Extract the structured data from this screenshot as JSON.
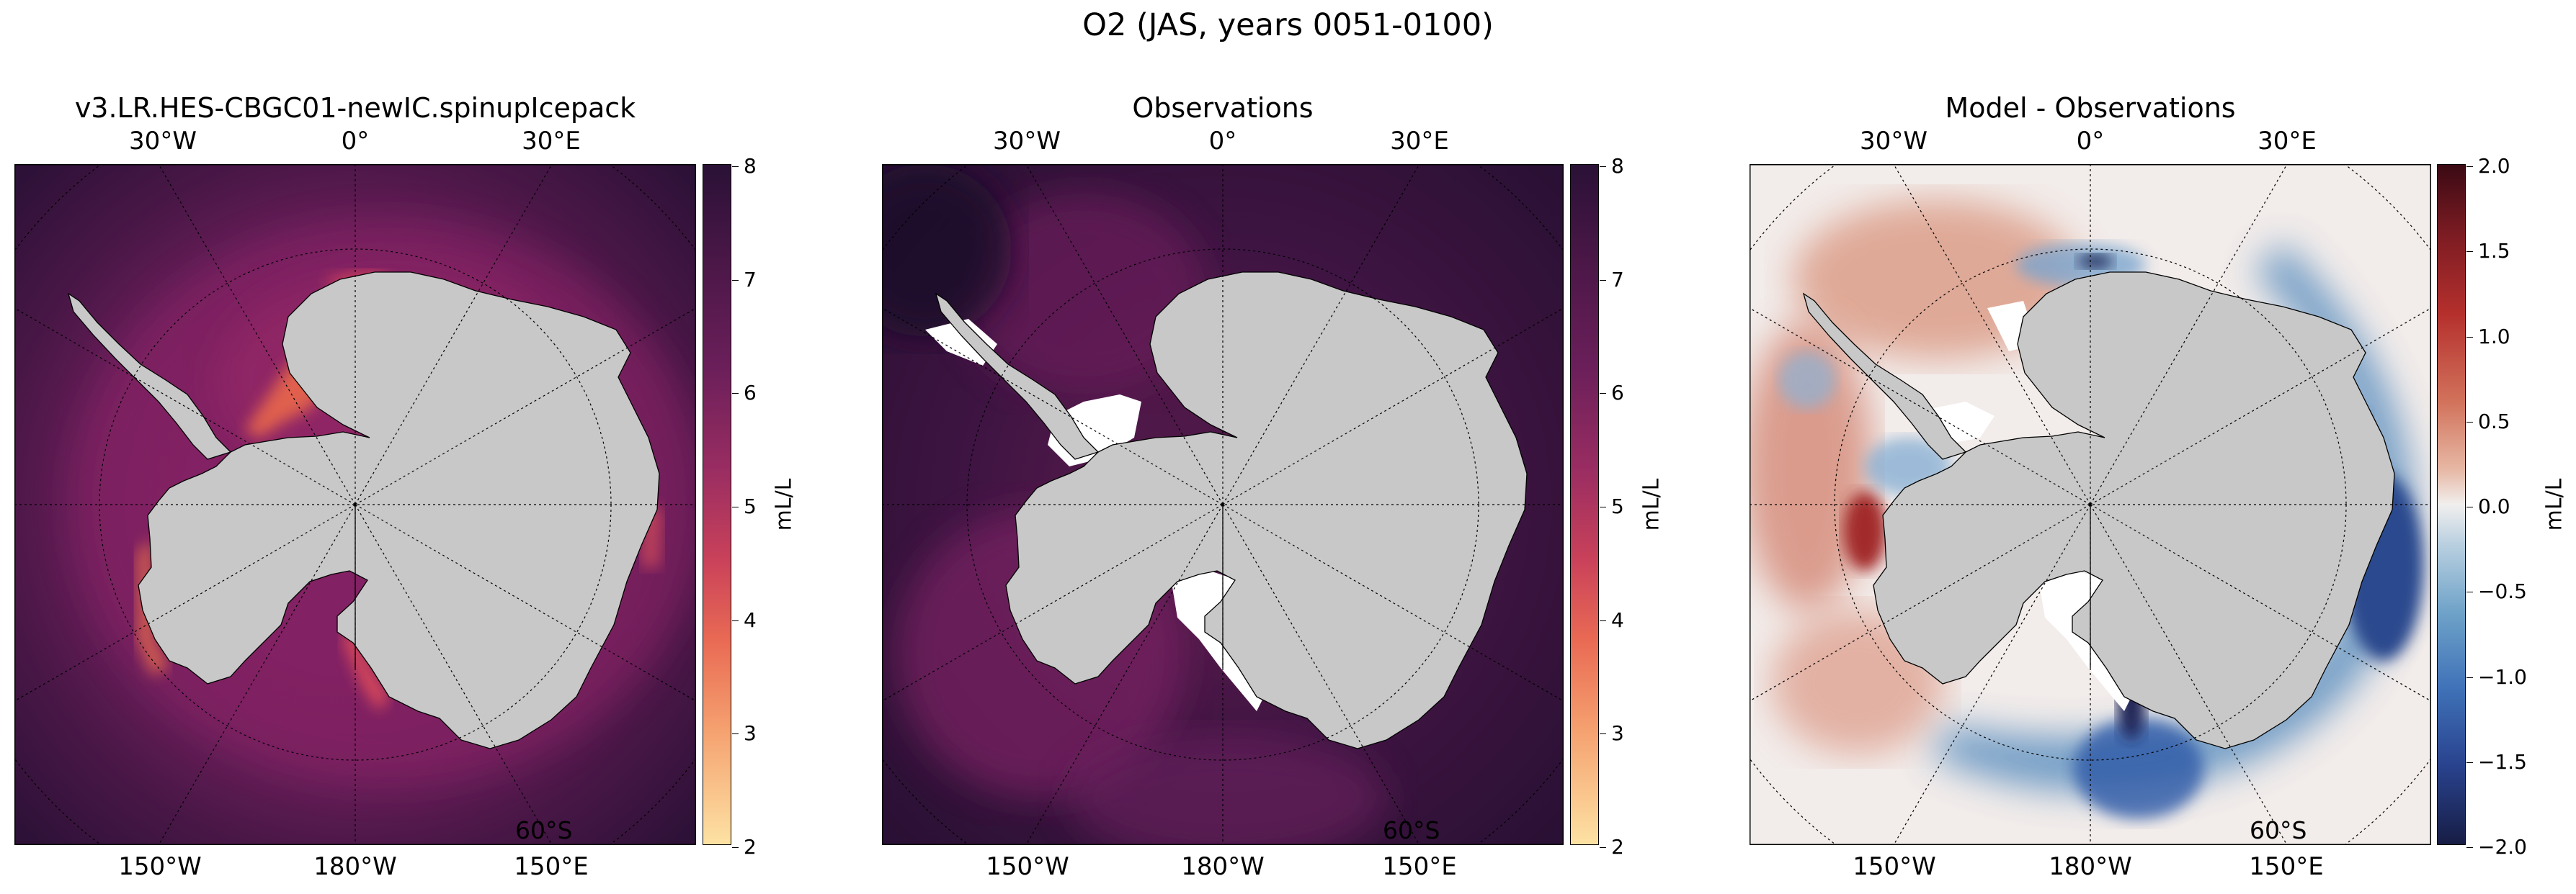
{
  "figure_title": "O2 (JAS, years 0051-0100)",
  "colors": {
    "land": "#c8c8c8",
    "map_border": "#000000"
  },
  "panels": [
    {
      "title": "v3.LR.HES-CBGC01-newIC.spinupIcepack",
      "top_lon_labels": [
        "30°W",
        "0°",
        "30°E"
      ],
      "bottom_lon_labels": [
        "150°W",
        "180°W",
        "150°E"
      ],
      "lat_label": "60°S",
      "colorbar": {
        "label": "mL/L",
        "ticks": [
          "8",
          "7",
          "6",
          "5",
          "4",
          "3",
          "2"
        ],
        "range": [
          2,
          8
        ],
        "colormap": "sequential magma-like (cream-orange-red-purple)"
      }
    },
    {
      "title": "Observations",
      "top_lon_labels": [
        "30°W",
        "0°",
        "30°E"
      ],
      "bottom_lon_labels": [
        "150°W",
        "180°W",
        "150°E"
      ],
      "lat_label": "60°S",
      "colorbar": {
        "label": "mL/L",
        "ticks": [
          "8",
          "7",
          "6",
          "5",
          "4",
          "3",
          "2"
        ],
        "range": [
          2,
          8
        ],
        "colormap": "sequential magma-like (cream-orange-red-purple)"
      }
    },
    {
      "title": "Model - Observations",
      "top_lon_labels": [
        "30°W",
        "0°",
        "30°E"
      ],
      "bottom_lon_labels": [
        "150°W",
        "180°W",
        "150°E"
      ],
      "lat_label": "60°S",
      "colorbar": {
        "label": "mL/L",
        "ticks": [
          "2.0",
          "1.5",
          "1.0",
          "0.5",
          "0.0",
          "−0.5",
          "−1.0",
          "−1.5",
          "−2.0"
        ],
        "range": [
          -2.0,
          2.0
        ],
        "colormap": "diverging balance (blue-white-red)"
      }
    }
  ]
}
